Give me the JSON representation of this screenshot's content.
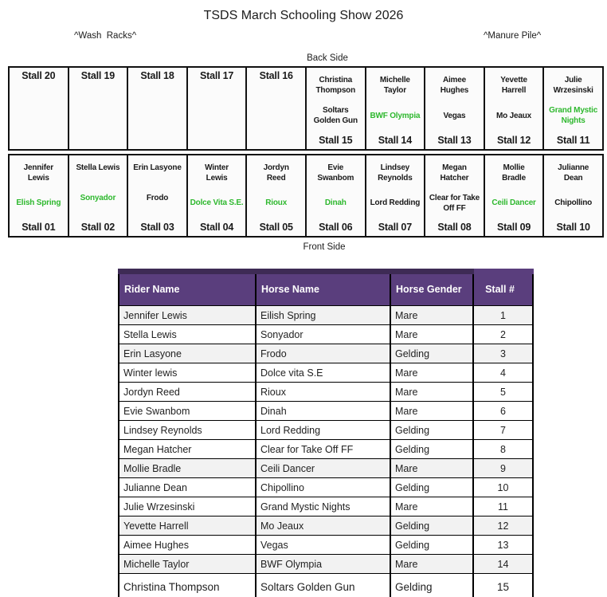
{
  "title": "TSDS March Schooling Show 2026",
  "labels": {
    "wash_racks": "^Wash  Racks^",
    "manure_pile": "^Manure Pile^",
    "back_side": "Back Side",
    "front_side": "Front Side"
  },
  "colors": {
    "horse_green": "#2eb82e",
    "header_purple": "#5a3e7d",
    "header_dark_strip": "#3e2b55"
  },
  "stall_grid": {
    "back_row": [
      {
        "stall": "Stall 20",
        "rider": "",
        "horse": "",
        "green": false,
        "layout": "top"
      },
      {
        "stall": "Stall 19",
        "rider": "",
        "horse": "",
        "green": false,
        "layout": "top"
      },
      {
        "stall": "Stall 18",
        "rider": "",
        "horse": "",
        "green": false,
        "layout": "top"
      },
      {
        "stall": "Stall 17",
        "rider": "",
        "horse": "",
        "green": false,
        "layout": "top"
      },
      {
        "stall": "Stall 16",
        "rider": "",
        "horse": "",
        "green": false,
        "layout": "top"
      },
      {
        "stall": "Stall 15",
        "rider": "Christina\nThompson",
        "horse": "Soltars\nGolden Gun",
        "green": false,
        "layout": "bottom"
      },
      {
        "stall": "Stall 14",
        "rider": "Michelle\nTaylor",
        "horse": "BWF Olympia",
        "green": true,
        "layout": "bottom"
      },
      {
        "stall": "Stall 13",
        "rider": "Aimee\nHughes",
        "horse": "Vegas",
        "green": false,
        "layout": "bottom"
      },
      {
        "stall": "Stall 12",
        "rider": "Yevette\nHarrell",
        "horse": "Mo Jeaux",
        "green": false,
        "layout": "bottom"
      },
      {
        "stall": "Stall 11",
        "rider": "Julie\nWrzesinski",
        "horse": "Grand Mystic\nNights",
        "green": true,
        "layout": "bottom"
      }
    ],
    "front_row": [
      {
        "stall": "Stall 01",
        "rider": "Jennifer\nLewis",
        "horse": "Elish Spring",
        "green": true,
        "layout": "bottom"
      },
      {
        "stall": "Stall 02",
        "rider": "Stella Lewis",
        "horse": "Sonyador",
        "green": true,
        "layout": "bottom"
      },
      {
        "stall": "Stall 03",
        "rider": "Erin Lasyone",
        "horse": "Frodo",
        "green": false,
        "layout": "bottom"
      },
      {
        "stall": "Stall 04",
        "rider": "Winter\nLewis",
        "horse": "Dolce Vita S.E.",
        "green": true,
        "layout": "bottom"
      },
      {
        "stall": "Stall 05",
        "rider": "Jordyn\nReed",
        "horse": "Rioux",
        "green": true,
        "layout": "bottom"
      },
      {
        "stall": "Stall 06",
        "rider": "Evie\nSwanbom",
        "horse": "Dinah",
        "green": true,
        "layout": "bottom"
      },
      {
        "stall": "Stall 07",
        "rider": "Lindsey\nReynolds",
        "horse": "Lord Redding",
        "green": false,
        "layout": "bottom"
      },
      {
        "stall": "Stall 08",
        "rider": "Megan\nHatcher",
        "horse": "Clear for Take\nOff FF",
        "green": false,
        "layout": "bottom"
      },
      {
        "stall": "Stall 09",
        "rider": "Mollie\nBradle",
        "horse": "Ceili Dancer",
        "green": true,
        "layout": "bottom"
      },
      {
        "stall": "Stall 10",
        "rider": "Julianne\nDean",
        "horse": "Chipollino",
        "green": false,
        "layout": "bottom"
      }
    ]
  },
  "table": {
    "columns": [
      "Rider Name",
      "Horse Name",
      "Horse Gender",
      "Stall #"
    ],
    "rows": [
      {
        "rider": "Jennifer Lewis",
        "horse": "Eilish Spring",
        "gender": "Mare",
        "stall": "1",
        "shaded": true
      },
      {
        "rider": "Stella Lewis",
        "horse": "Sonyador",
        "gender": "Mare",
        "stall": "2",
        "shaded": false
      },
      {
        "rider": "Erin Lasyone",
        "horse": "Frodo",
        "gender": "Gelding",
        "stall": "3",
        "shaded": true
      },
      {
        "rider": "Winter lewis",
        "horse": "Dolce vita S.E",
        "gender": "Mare",
        "stall": "4",
        "shaded": false
      },
      {
        "rider": "Jordyn Reed",
        "horse": "Rioux",
        "gender": "Mare",
        "stall": "5",
        "shaded": false
      },
      {
        "rider": "Evie Swanbom",
        "horse": "Dinah",
        "gender": "Mare",
        "stall": "6",
        "shaded": false
      },
      {
        "rider": "Lindsey Reynolds",
        "horse": "Lord Redding",
        "gender": "Gelding",
        "stall": "7",
        "shaded": false
      },
      {
        "rider": "Megan Hatcher",
        "horse": "Clear for Take Off FF",
        "gender": "Gelding",
        "stall": "8",
        "shaded": false
      },
      {
        "rider": "Mollie Bradle",
        "horse": "Ceili Dancer",
        "gender": "Mare",
        "stall": "9",
        "shaded": true
      },
      {
        "rider": "Julianne Dean",
        "horse": "Chipollino",
        "gender": "Gelding",
        "stall": "10",
        "shaded": false
      },
      {
        "rider": "Julie Wrzesinski",
        "horse": "Grand Mystic Nights",
        "gender": "Mare",
        "stall": "11",
        "shaded": false
      },
      {
        "rider": "Yevette Harrell",
        "horse": "Mo Jeaux",
        "gender": "Gelding",
        "stall": "12",
        "shaded": true
      },
      {
        "rider": "Aimee Hughes",
        "horse": "Vegas",
        "gender": "Gelding",
        "stall": "13",
        "shaded": false
      },
      {
        "rider": "Michelle Taylor",
        "horse": "BWF Olympia",
        "gender": "Mare",
        "stall": "14",
        "shaded": true
      },
      {
        "rider": "Christina Thompson",
        "horse": "Soltars Golden Gun",
        "gender": "Gelding",
        "stall": "15",
        "shaded": false
      }
    ]
  }
}
